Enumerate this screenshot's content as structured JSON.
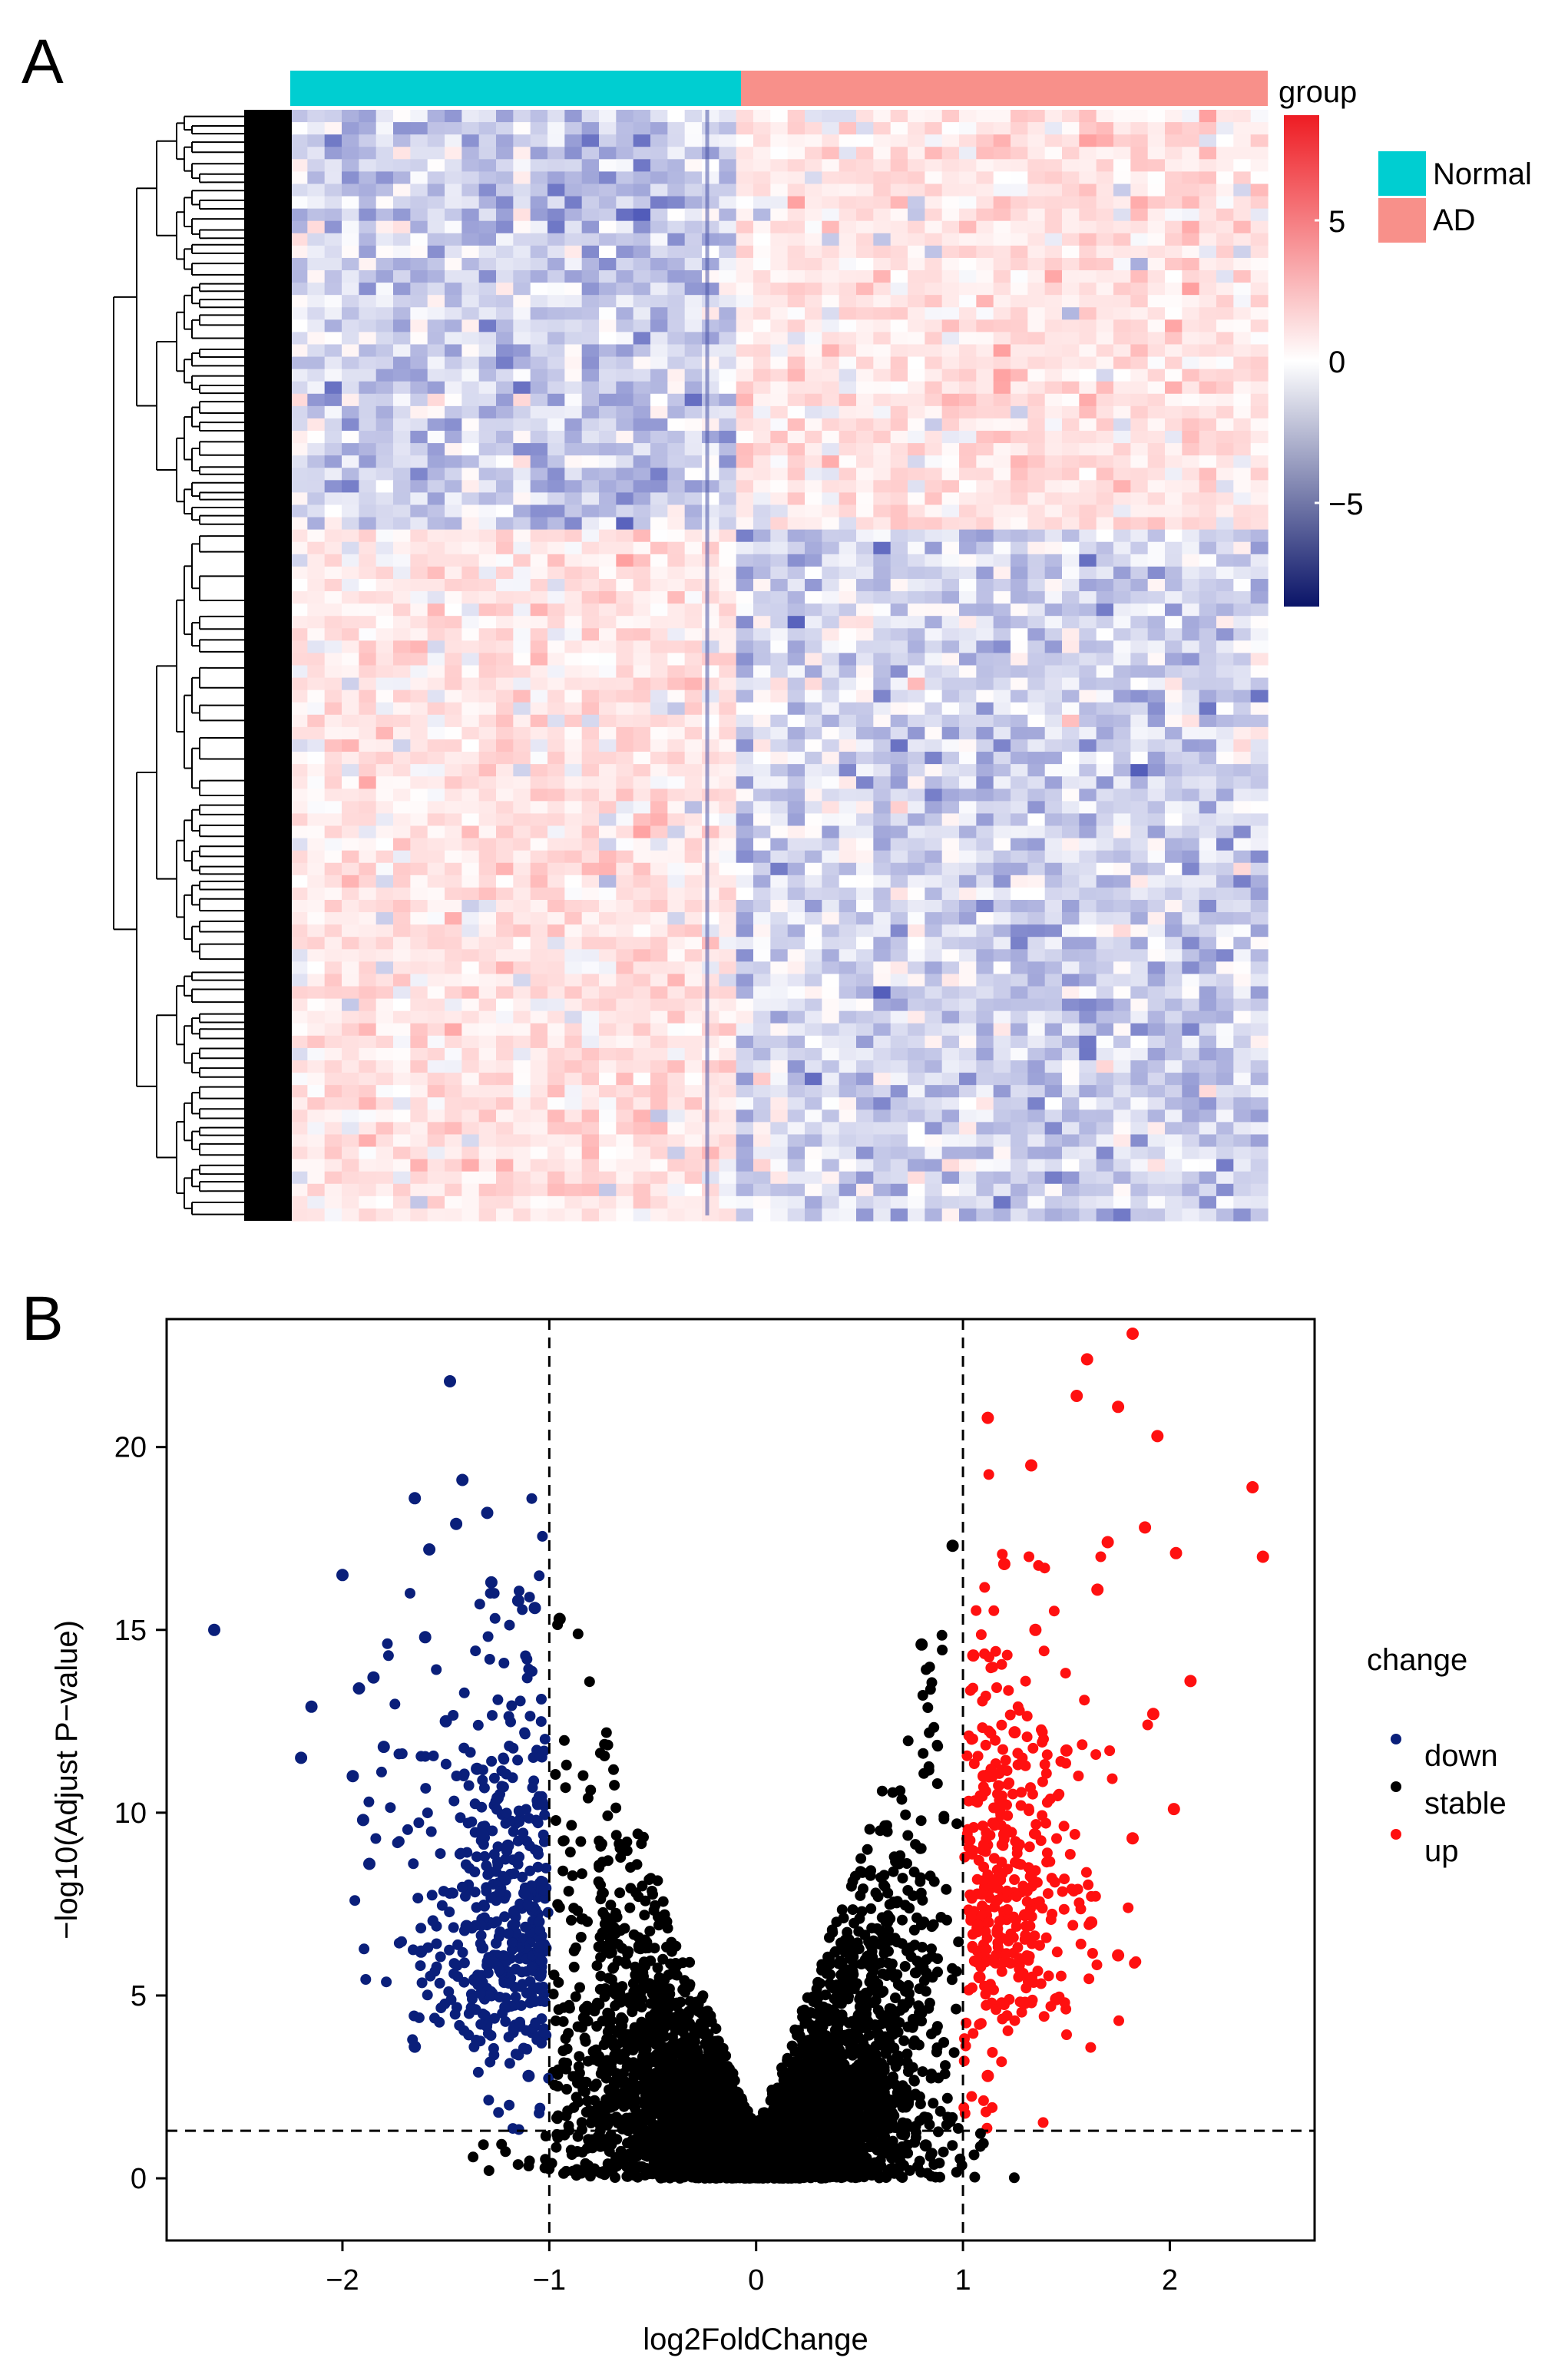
{
  "panel_a_label": "A",
  "panel_b_label": "B",
  "colors": {
    "normal": "#00CED1",
    "ad": "#F8908A",
    "heat_low": "#0A1468",
    "heat_mid": "#FFFFFF",
    "heat_high": "#EE1C23",
    "down": "#0A1F7A",
    "stable": "#000000",
    "up": "#FF1010"
  },
  "chart_data": [
    {
      "type": "heatmap",
      "title": "",
      "annotation_title": "group",
      "groups": [
        {
          "name": "Normal",
          "color": "#00CED1",
          "samples": 26
        },
        {
          "name": "AD",
          "color": "#F8908A",
          "samples": 31
        }
      ],
      "color_scale": {
        "range": [
          -8.5,
          8.5
        ],
        "ticks": [
          5,
          0,
          -5
        ],
        "tick_labels": [
          "5",
          "0",
          "−5"
        ]
      },
      "row_blocks": [
        {
          "rows_fraction": 0.38,
          "pattern": "down in Normal, up in AD"
        },
        {
          "rows_fraction": 0.62,
          "pattern": "up in Normal, down in AD"
        }
      ],
      "dendrogram": "rows"
    },
    {
      "type": "scatter",
      "title": "",
      "xlabel": "log2FoldChange",
      "ylabel": "−log10(Adjust P−value)",
      "xlim": [
        -2.85,
        2.7
      ],
      "ylim": [
        -1.7,
        23.5
      ],
      "xticks": [
        -2,
        -1,
        0,
        1,
        2
      ],
      "xtick_labels": [
        "−2",
        "−1",
        "0",
        "1",
        "2"
      ],
      "yticks": [
        0,
        5,
        10,
        15,
        20
      ],
      "ytick_labels": [
        "0",
        "5",
        "10",
        "15",
        "20"
      ],
      "thresholds": {
        "vertical": [
          -1,
          1
        ],
        "horizontal": 1.3
      },
      "legend": {
        "title": "change",
        "placement": "right",
        "entries": [
          {
            "label": "down",
            "color": "#0A1F7A"
          },
          {
            "label": "stable",
            "color": "#000000"
          },
          {
            "label": "up",
            "color": "#FF1010"
          }
        ]
      },
      "series": [
        {
          "name": "down",
          "color": "#0A1F7A",
          "points": [
            [
              -2.62,
              15.0
            ],
            [
              -1.48,
              21.8
            ],
            [
              -1.42,
              19.1
            ],
            [
              -1.65,
              18.6
            ],
            [
              -1.3,
              18.2
            ],
            [
              -1.45,
              17.9
            ],
            [
              -1.58,
              17.2
            ],
            [
              -2.0,
              16.5
            ],
            [
              -1.28,
              16.3
            ],
            [
              -1.15,
              15.8
            ],
            [
              -1.07,
              15.6
            ],
            [
              -1.6,
              14.8
            ],
            [
              -1.85,
              13.7
            ],
            [
              -1.92,
              13.4
            ],
            [
              -2.15,
              12.9
            ],
            [
              -2.2,
              11.5
            ],
            [
              -1.8,
              11.8
            ],
            [
              -1.95,
              11.0
            ],
            [
              -1.9,
              9.8
            ],
            [
              -1.87,
              8.6
            ],
            [
              -1.62,
              6.2
            ],
            [
              -1.65,
              3.6
            ],
            [
              -1.1,
              2.8
            ],
            [
              -1.5,
              12.5
            ],
            [
              -1.35,
              11.2
            ],
            [
              -1.25,
              10.4
            ],
            [
              -1.2,
              9.1
            ],
            [
              -1.12,
              7.8
            ],
            [
              -1.4,
              6.9
            ],
            [
              -1.05,
              5.2
            ]
          ]
        },
        {
          "name": "stable",
          "color": "#000000",
          "points": [
            [
              0.95,
              17.3
            ],
            [
              0.8,
              14.6
            ],
            [
              -0.95,
              15.3
            ],
            [
              0.82,
              0.9
            ],
            [
              -0.85,
              2.6
            ],
            [
              0.6,
              1.4
            ]
          ]
        },
        {
          "name": "up",
          "color": "#FF1010",
          "points": [
            [
              1.82,
              23.1
            ],
            [
              1.6,
              22.4
            ],
            [
              1.12,
              20.8
            ],
            [
              1.55,
              21.4
            ],
            [
              1.75,
              21.1
            ],
            [
              1.94,
              20.3
            ],
            [
              1.33,
              19.5
            ],
            [
              2.4,
              18.9
            ],
            [
              2.45,
              17.0
            ],
            [
              1.88,
              17.8
            ],
            [
              2.03,
              17.1
            ],
            [
              1.7,
              17.4
            ],
            [
              1.2,
              16.8
            ],
            [
              1.65,
              16.1
            ],
            [
              1.35,
              15.0
            ],
            [
              1.05,
              14.3
            ],
            [
              2.1,
              13.6
            ],
            [
              1.92,
              12.7
            ],
            [
              1.5,
              11.7
            ],
            [
              2.02,
              10.1
            ],
            [
              1.82,
              9.3
            ],
            [
              1.62,
              7.0
            ],
            [
              1.75,
              6.1
            ],
            [
              1.3,
              4.8
            ],
            [
              1.45,
              4.9
            ],
            [
              1.12,
              2.8
            ],
            [
              1.25,
              12.2
            ],
            [
              1.1,
              11.0
            ],
            [
              1.2,
              9.4
            ],
            [
              1.15,
              8.1
            ],
            [
              1.3,
              7.2
            ],
            [
              1.08,
              5.5
            ]
          ]
        }
      ]
    }
  ]
}
